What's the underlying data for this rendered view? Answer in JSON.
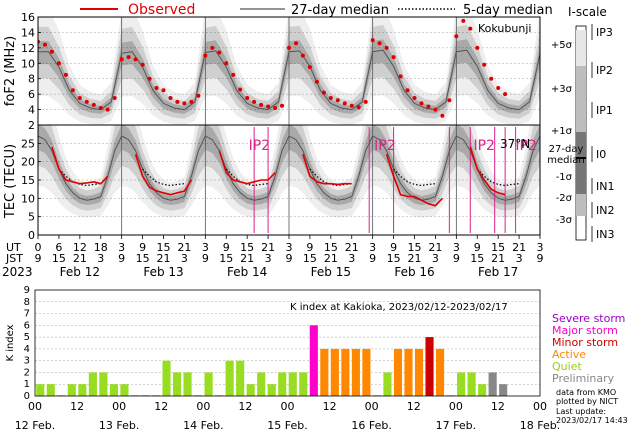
{
  "colors": {
    "observed": "#e00000",
    "median27": "#555555",
    "median5": "#000000",
    "band_outer": "#eeeeee",
    "band_mid": "#cfcfcf",
    "band_inner": "#a9a9a9",
    "storm_marker": "#dd2288",
    "severe": "#9900cc",
    "major": "#ff00cc",
    "minor": "#cc0000",
    "active": "#ff8800",
    "quiet": "#99dd22",
    "preliminary": "#888888"
  },
  "legend": {
    "observed": "Observed",
    "median27": "27-day median",
    "median5": "5-day median"
  },
  "station": "Kokubunji",
  "latitude": "37°N",
  "storm_label": "IP2",
  "time_axis": {
    "year": "2023",
    "ut_label": "UT",
    "jst_label": "JST",
    "ut_ticks": [
      "0",
      "6",
      "12",
      "18",
      "3",
      "9",
      "15",
      "21",
      "3",
      "9",
      "15",
      "21",
      "3",
      "9",
      "15",
      "21",
      "3",
      "9",
      "15",
      "21",
      "3",
      "9",
      "15",
      "21",
      "3",
      "9"
    ],
    "jst_ticks": [
      "9",
      "15",
      "21",
      "3",
      "9",
      "15",
      "21",
      "3",
      "9",
      "15",
      "21",
      "3",
      "9",
      "15",
      "21",
      "3",
      "9",
      "15",
      "21",
      "3",
      "9",
      "15",
      "21",
      "3",
      "9"
    ],
    "day_labels": [
      "Feb 12",
      "Feb 13",
      "Feb 14",
      "Feb 15",
      "Feb 16",
      "Feb 17"
    ]
  },
  "iscale": {
    "title": "I-scale",
    "levels": [
      "+5σ",
      "+3σ",
      "+1σ",
      "-1σ",
      "-2σ",
      "-3σ"
    ],
    "median_label": [
      "27-day",
      "median"
    ],
    "classes": [
      "IP3",
      "IP2",
      "IP1",
      "I0",
      "IN1",
      "IN2",
      "IN3"
    ]
  },
  "k_legend": {
    "severe": "Severe storm",
    "major": "Major storm",
    "minor": "Minor storm",
    "active": "Active",
    "quiet": "Quiet",
    "preliminary": "Preliminary",
    "credit1": "data from KMO",
    "credit2": "plotted by NICT",
    "update1": "Last update:",
    "update2": "2023/02/17 14:43 UT"
  },
  "chart_data": [
    {
      "type": "line",
      "name": "foF2",
      "ylabel": "foF2 (MHz)",
      "ylim": [
        2,
        16
      ],
      "yticks": [
        2,
        4,
        6,
        8,
        10,
        12,
        14,
        16
      ],
      "grid": true,
      "x_unit": "hours UT from 2023-02-12 00:00",
      "xlim": [
        0,
        144
      ],
      "median27": [
        [
          0,
          11.5
        ],
        [
          3,
          11.5
        ],
        [
          6,
          9.5
        ],
        [
          9,
          6.5
        ],
        [
          12,
          4.8
        ],
        [
          15,
          4.2
        ],
        [
          18,
          4.0
        ],
        [
          21,
          5.0
        ],
        [
          24,
          11.3
        ],
        [
          27,
          11.5
        ],
        [
          30,
          9.5
        ],
        [
          33,
          6.5
        ],
        [
          36,
          4.8
        ],
        [
          39,
          4.2
        ],
        [
          42,
          4.0
        ],
        [
          45,
          5.0
        ],
        [
          48,
          11.4
        ],
        [
          51,
          11.6
        ],
        [
          54,
          9.5
        ],
        [
          57,
          6.5
        ],
        [
          60,
          4.8
        ],
        [
          63,
          4.2
        ],
        [
          66,
          4.0
        ],
        [
          69,
          5.0
        ],
        [
          72,
          11.5
        ],
        [
          75,
          11.6
        ],
        [
          78,
          9.6
        ],
        [
          81,
          6.5
        ],
        [
          84,
          4.8
        ],
        [
          87,
          4.2
        ],
        [
          90,
          4.0
        ],
        [
          93,
          5.0
        ],
        [
          96,
          11.5
        ],
        [
          99,
          11.7
        ],
        [
          102,
          9.6
        ],
        [
          105,
          6.5
        ],
        [
          108,
          4.8
        ],
        [
          111,
          4.2
        ],
        [
          114,
          4.0
        ],
        [
          117,
          5.0
        ],
        [
          120,
          11.5
        ],
        [
          123,
          11.7
        ],
        [
          126,
          9.6
        ],
        [
          129,
          6.5
        ],
        [
          132,
          4.8
        ],
        [
          135,
          4.2
        ],
        [
          138,
          4.0
        ],
        [
          141,
          5.0
        ],
        [
          144,
          11.2
        ]
      ],
      "observed": [
        [
          0,
          12.8
        ],
        [
          2,
          12.4
        ],
        [
          4,
          11.5
        ],
        [
          6,
          10.0
        ],
        [
          8,
          8.5
        ],
        [
          10,
          6.5
        ],
        [
          12,
          5.5
        ],
        [
          14,
          5.0
        ],
        [
          16,
          4.6
        ],
        [
          18,
          4.2
        ],
        [
          20,
          4.0
        ],
        [
          22,
          5.5
        ],
        [
          24,
          10.5
        ],
        [
          26,
          10.8
        ],
        [
          28,
          10.5
        ],
        [
          30,
          9.8
        ],
        [
          32,
          8.0
        ],
        [
          34,
          6.8
        ],
        [
          36,
          6.5
        ],
        [
          38,
          5.5
        ],
        [
          40,
          5.0
        ],
        [
          42,
          4.8
        ],
        [
          44,
          5.0
        ],
        [
          46,
          5.8
        ],
        [
          48,
          11.0
        ],
        [
          50,
          12.0
        ],
        [
          52,
          11.4
        ],
        [
          54,
          10.0
        ],
        [
          56,
          8.5
        ],
        [
          58,
          6.6
        ],
        [
          60,
          5.5
        ],
        [
          62,
          5.0
        ],
        [
          64,
          4.6
        ],
        [
          66,
          4.4
        ],
        [
          68,
          4.2
        ],
        [
          70,
          4.5
        ],
        [
          72,
          12.0
        ],
        [
          74,
          12.6
        ],
        [
          76,
          11.0
        ],
        [
          78,
          9.5
        ],
        [
          80,
          7.6
        ],
        [
          82,
          6.2
        ],
        [
          84,
          5.5
        ],
        [
          86,
          5.2
        ],
        [
          88,
          4.8
        ],
        [
          90,
          4.5
        ],
        [
          92,
          4.3
        ],
        [
          94,
          5.0
        ],
        [
          96,
          13.0
        ],
        [
          98,
          12.6
        ],
        [
          100,
          12.0
        ],
        [
          102,
          10.8
        ],
        [
          104,
          8.3
        ],
        [
          106,
          6.5
        ],
        [
          108,
          5.5
        ],
        [
          110,
          4.8
        ],
        [
          112,
          4.4
        ],
        [
          114,
          4.0
        ],
        [
          116,
          3.2
        ],
        [
          118,
          5.2
        ],
        [
          120,
          13.5
        ],
        [
          122,
          15.5
        ],
        [
          124,
          14.5
        ],
        [
          126,
          12.0
        ],
        [
          128,
          9.8
        ],
        [
          130,
          8.0
        ],
        [
          132,
          6.8
        ],
        [
          134,
          6.0
        ]
      ]
    },
    {
      "type": "line",
      "name": "TEC",
      "ylabel": "TEC (TECU)",
      "ylim": [
        0,
        30
      ],
      "yticks": [
        0,
        5,
        10,
        15,
        20,
        25
      ],
      "grid": true,
      "x_unit": "hours UT from 2023-02-12 00:00",
      "xlim": [
        0,
        144
      ],
      "median27": [
        [
          0,
          27
        ],
        [
          2,
          26
        ],
        [
          4,
          23
        ],
        [
          6,
          18
        ],
        [
          8,
          14
        ],
        [
          10,
          11.5
        ],
        [
          12,
          10
        ],
        [
          14,
          9.5
        ],
        [
          16,
          9.8
        ],
        [
          18,
          10.5
        ],
        [
          20,
          16
        ],
        [
          22,
          23
        ],
        [
          24,
          27
        ],
        [
          26,
          26
        ],
        [
          28,
          23
        ],
        [
          30,
          18
        ],
        [
          32,
          14
        ],
        [
          34,
          11.5
        ],
        [
          36,
          10
        ],
        [
          38,
          9.5
        ],
        [
          40,
          9.8
        ],
        [
          42,
          10.5
        ],
        [
          44,
          16
        ],
        [
          46,
          23
        ],
        [
          48,
          27
        ],
        [
          50,
          26
        ],
        [
          52,
          23
        ],
        [
          54,
          18
        ],
        [
          56,
          14
        ],
        [
          58,
          11.5
        ],
        [
          60,
          10
        ],
        [
          62,
          9.5
        ],
        [
          64,
          9.8
        ],
        [
          66,
          10.5
        ],
        [
          68,
          16
        ],
        [
          70,
          23
        ],
        [
          72,
          27
        ],
        [
          74,
          26
        ],
        [
          76,
          23
        ],
        [
          78,
          18
        ],
        [
          80,
          14
        ],
        [
          82,
          11.5
        ],
        [
          84,
          10
        ],
        [
          86,
          9.5
        ],
        [
          88,
          9.8
        ],
        [
          90,
          10.5
        ],
        [
          92,
          16
        ],
        [
          94,
          23
        ],
        [
          96,
          27
        ],
        [
          98,
          26
        ],
        [
          100,
          23
        ],
        [
          102,
          18
        ],
        [
          104,
          14
        ],
        [
          106,
          11.5
        ],
        [
          108,
          10
        ],
        [
          110,
          9.5
        ],
        [
          112,
          9.8
        ],
        [
          114,
          10.5
        ],
        [
          116,
          16
        ],
        [
          118,
          23
        ],
        [
          120,
          27
        ],
        [
          122,
          26
        ],
        [
          124,
          23
        ],
        [
          126,
          18
        ],
        [
          128,
          14
        ],
        [
          130,
          11.5
        ],
        [
          132,
          10
        ],
        [
          134,
          9.5
        ],
        [
          136,
          9.8
        ],
        [
          138,
          10.5
        ],
        [
          140,
          16
        ],
        [
          142,
          23
        ],
        [
          144,
          27
        ]
      ],
      "median5": [
        [
          6,
          18
        ],
        [
          8,
          16
        ],
        [
          10,
          14.5
        ],
        [
          12,
          13.8
        ],
        [
          14,
          13.5
        ],
        [
          16,
          13.8
        ],
        [
          18,
          14
        ],
        [
          30,
          18
        ],
        [
          32,
          16
        ],
        [
          34,
          14.5
        ],
        [
          36,
          13.8
        ],
        [
          38,
          13.5
        ],
        [
          40,
          13.8
        ],
        [
          42,
          14
        ],
        [
          54,
          18
        ],
        [
          56,
          16
        ],
        [
          58,
          14.5
        ],
        [
          60,
          13.8
        ],
        [
          62,
          13.5
        ],
        [
          64,
          13.8
        ],
        [
          66,
          14
        ],
        [
          78,
          18
        ],
        [
          80,
          16
        ],
        [
          82,
          14.5
        ],
        [
          84,
          13.8
        ],
        [
          86,
          13.5
        ],
        [
          88,
          13.8
        ],
        [
          90,
          14
        ],
        [
          102,
          18
        ],
        [
          104,
          16
        ],
        [
          106,
          14.5
        ],
        [
          108,
          13.8
        ],
        [
          110,
          13.5
        ],
        [
          112,
          13.8
        ],
        [
          114,
          14
        ],
        [
          126,
          18
        ],
        [
          128,
          16
        ],
        [
          130,
          14.5
        ],
        [
          132,
          13.8
        ],
        [
          134,
          13.5
        ],
        [
          136,
          13.8
        ],
        [
          138,
          14
        ]
      ],
      "observed": [
        [
          4,
          24
        ],
        [
          6,
          18
        ],
        [
          8,
          15
        ],
        [
          10,
          14.5
        ],
        [
          12,
          14
        ],
        [
          14,
          14.2
        ],
        [
          16,
          14.5
        ],
        [
          18,
          14
        ],
        [
          20,
          16
        ],
        [
          28,
          22
        ],
        [
          30,
          16
        ],
        [
          32,
          13
        ],
        [
          34,
          12
        ],
        [
          36,
          11.5
        ],
        [
          38,
          11
        ],
        [
          40,
          11.5
        ],
        [
          42,
          12
        ],
        [
          44,
          15
        ],
        [
          52,
          23
        ],
        [
          54,
          17
        ],
        [
          56,
          15
        ],
        [
          58,
          14.5
        ],
        [
          60,
          14
        ],
        [
          62,
          14.5
        ],
        [
          64,
          15
        ],
        [
          66,
          15
        ],
        [
          68,
          17
        ],
        [
          76,
          22
        ],
        [
          78,
          16
        ],
        [
          80,
          14.5
        ],
        [
          82,
          14
        ],
        [
          84,
          14
        ],
        [
          86,
          13.8
        ],
        [
          88,
          14
        ],
        [
          90,
          14
        ],
        [
          100,
          22
        ],
        [
          102,
          16
        ],
        [
          104,
          11
        ],
        [
          106,
          10.5
        ],
        [
          108,
          10.5
        ],
        [
          110,
          9.5
        ],
        [
          112,
          8.5
        ],
        [
          114,
          8
        ],
        [
          116,
          10
        ],
        [
          124,
          24
        ],
        [
          126,
          18
        ],
        [
          128,
          15
        ],
        [
          130,
          12.5
        ],
        [
          132,
          11.5
        ],
        [
          134,
          11
        ]
      ]
    },
    {
      "type": "bar",
      "name": "K index",
      "title": "K index at Kakioka, 2023/02/12-2023/02/17",
      "ylabel": "K index",
      "ylim": [
        0,
        9
      ],
      "yticks": [
        0,
        1,
        2,
        3,
        4,
        5,
        6,
        7,
        8,
        9
      ],
      "x_unit": "3-hour intervals UT from 2023-02-12 00:00",
      "values": [
        1,
        1,
        0,
        1,
        1,
        2,
        2,
        1,
        1,
        0,
        0,
        0,
        3,
        2,
        2,
        0,
        2,
        0,
        3,
        3,
        1,
        2,
        1,
        2,
        2,
        2,
        6,
        4,
        4,
        4,
        4,
        4,
        0,
        2,
        4,
        4,
        4,
        5,
        4,
        0,
        2,
        2,
        1,
        2,
        1
      ],
      "status": [
        "quiet",
        "quiet",
        "quiet",
        "quiet",
        "quiet",
        "quiet",
        "quiet",
        "quiet",
        "quiet",
        "quiet",
        "quiet",
        "quiet",
        "quiet",
        "quiet",
        "quiet",
        "quiet",
        "quiet",
        "quiet",
        "quiet",
        "quiet",
        "quiet",
        "quiet",
        "quiet",
        "quiet",
        "quiet",
        "quiet",
        "major",
        "active",
        "active",
        "active",
        "active",
        "active",
        "quiet",
        "quiet",
        "active",
        "active",
        "active",
        "minor",
        "active",
        "quiet",
        "quiet",
        "quiet",
        "quiet",
        "preliminary",
        "preliminary"
      ],
      "hour_ticks": [
        "00",
        "12",
        "00",
        "12",
        "00",
        "12",
        "00",
        "12",
        "00",
        "12",
        "00",
        "12",
        "00"
      ],
      "date_ticks": [
        "12 Feb.",
        "13 Feb.",
        "14 Feb.",
        "15 Feb.",
        "16 Feb.",
        "17 Feb.",
        "18 Feb."
      ]
    }
  ]
}
